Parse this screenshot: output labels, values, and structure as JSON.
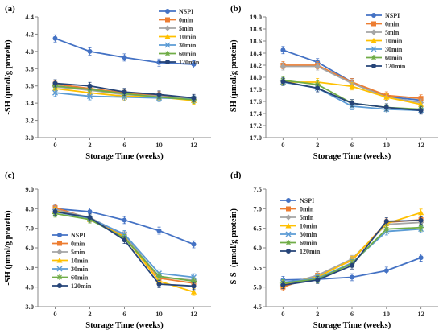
{
  "figure": {
    "title": ""
  },
  "colors": {
    "NSPI": "#4472C4",
    "0min": "#ED7D31",
    "5min": "#A5A5A5",
    "10min": "#FFC000",
    "30min": "#5B9BD5",
    "60min": "#70AD47",
    "120min": "#264478"
  },
  "markers": {
    "NSPI": "circle",
    "0min": "square",
    "5min": "diamond",
    "10min": "triangle",
    "30min": "x",
    "60min": "star",
    "120min": "circle"
  },
  "chart_data": [
    {
      "panel_label": "(a)",
      "type": "line",
      "x": [
        0,
        2,
        6,
        10,
        12
      ],
      "xlabel": "Storage Time (weeks)",
      "ylabel": "-SH (μmol/g protein)",
      "ylim": [
        3.0,
        4.4
      ],
      "yticks": [
        "3.0",
        "3.2",
        "3.4",
        "3.6",
        "3.8",
        "4.0",
        "4.2",
        "4.4"
      ],
      "grid": false,
      "legend_position": "top-right",
      "series": [
        {
          "name": "NSPI",
          "values": [
            4.15,
            4.0,
            3.93,
            3.87,
            3.85
          ]
        },
        {
          "name": "0min",
          "values": [
            3.62,
            3.57,
            3.52,
            3.49,
            3.45
          ]
        },
        {
          "name": "5min",
          "values": [
            3.59,
            3.55,
            3.5,
            3.48,
            3.44
          ]
        },
        {
          "name": "10min",
          "values": [
            3.57,
            3.52,
            3.48,
            3.47,
            3.43
          ]
        },
        {
          "name": "30min",
          "values": [
            3.52,
            3.48,
            3.47,
            3.46,
            3.45
          ]
        },
        {
          "name": "60min",
          "values": [
            3.6,
            3.56,
            3.51,
            3.47,
            3.44
          ]
        },
        {
          "name": "120min",
          "values": [
            3.63,
            3.6,
            3.53,
            3.5,
            3.46
          ]
        }
      ]
    },
    {
      "panel_label": "(b)",
      "type": "line",
      "x": [
        0,
        2,
        6,
        10,
        12
      ],
      "xlabel": "Storage Time (weeks)",
      "ylabel": "-SH (μmol/g protein)",
      "ylim": [
        17.0,
        19.0
      ],
      "yticks": [
        "17.0",
        "17.2",
        "17.4",
        "17.6",
        "17.8",
        "18.0",
        "18.2",
        "18.4",
        "18.6",
        "18.8",
        "19.0"
      ],
      "grid": false,
      "legend_position": "top-right",
      "series": [
        {
          "name": "NSPI",
          "values": [
            18.45,
            18.25,
            17.92,
            17.68,
            17.62
          ]
        },
        {
          "name": "0min",
          "values": [
            18.2,
            18.2,
            17.92,
            17.7,
            17.65
          ]
        },
        {
          "name": "5min",
          "values": [
            18.18,
            18.18,
            17.9,
            17.67,
            17.58
          ]
        },
        {
          "name": "10min",
          "values": [
            17.92,
            17.92,
            17.85,
            17.67,
            17.55
          ]
        },
        {
          "name": "30min",
          "values": [
            17.92,
            17.82,
            17.52,
            17.47,
            17.45
          ]
        },
        {
          "name": "60min",
          "values": [
            17.95,
            17.88,
            17.57,
            17.5,
            17.47
          ]
        },
        {
          "name": "120min",
          "values": [
            17.93,
            17.82,
            17.57,
            17.5,
            17.45
          ]
        }
      ]
    },
    {
      "panel_label": "(c)",
      "type": "line",
      "x": [
        0,
        2,
        6,
        10,
        12
      ],
      "xlabel": "Storage Time (weeks)",
      "ylabel": "-SH (μmol/g protein)",
      "ylim": [
        3.0,
        9.0
      ],
      "yticks": [
        "3.0",
        "4.0",
        "5.0",
        "6.0",
        "7.0",
        "8.0",
        "9.0"
      ],
      "grid": false,
      "legend_position": "bottom-left",
      "series": [
        {
          "name": "NSPI",
          "values": [
            8.0,
            7.85,
            7.42,
            6.88,
            6.18
          ]
        },
        {
          "name": "0min",
          "values": [
            8.05,
            7.5,
            6.6,
            4.45,
            4.2
          ]
        },
        {
          "name": "5min",
          "values": [
            7.95,
            7.55,
            6.65,
            4.5,
            4.35
          ]
        },
        {
          "name": "10min",
          "values": [
            7.9,
            7.45,
            6.55,
            4.3,
            3.75
          ]
        },
        {
          "name": "30min",
          "values": [
            7.85,
            7.5,
            6.7,
            4.7,
            4.5
          ]
        },
        {
          "name": "60min",
          "values": [
            7.75,
            7.45,
            6.5,
            4.55,
            4.3
          ]
        },
        {
          "name": "120min",
          "values": [
            7.85,
            7.55,
            6.4,
            4.15,
            4.05
          ]
        }
      ]
    },
    {
      "panel_label": "(d)",
      "type": "line",
      "x": [
        0,
        2,
        6,
        10,
        12
      ],
      "xlabel": "Storage Time (weeks)",
      "ylabel": "-S-S- (μmol/g protein)",
      "ylim": [
        4.5,
        7.5
      ],
      "yticks": [
        "4.5",
        "5.0",
        "5.5",
        "6.0",
        "6.5",
        "7.0",
        "7.5"
      ],
      "grid": false,
      "legend_position": "top-left",
      "series": [
        {
          "name": "NSPI",
          "values": [
            5.18,
            5.2,
            5.25,
            5.42,
            5.75
          ]
        },
        {
          "name": "0min",
          "values": [
            5.0,
            5.3,
            5.68,
            6.65,
            6.72
          ]
        },
        {
          "name": "5min",
          "values": [
            5.05,
            5.3,
            5.72,
            6.6,
            6.65
          ]
        },
        {
          "name": "10min",
          "values": [
            5.08,
            5.25,
            5.7,
            6.62,
            6.9
          ]
        },
        {
          "name": "30min",
          "values": [
            5.12,
            5.22,
            5.62,
            6.42,
            6.48
          ]
        },
        {
          "name": "60min",
          "values": [
            5.1,
            5.2,
            5.6,
            6.48,
            6.52
          ]
        },
        {
          "name": "120min",
          "values": [
            5.05,
            5.18,
            5.55,
            6.68,
            6.7
          ]
        }
      ]
    }
  ]
}
